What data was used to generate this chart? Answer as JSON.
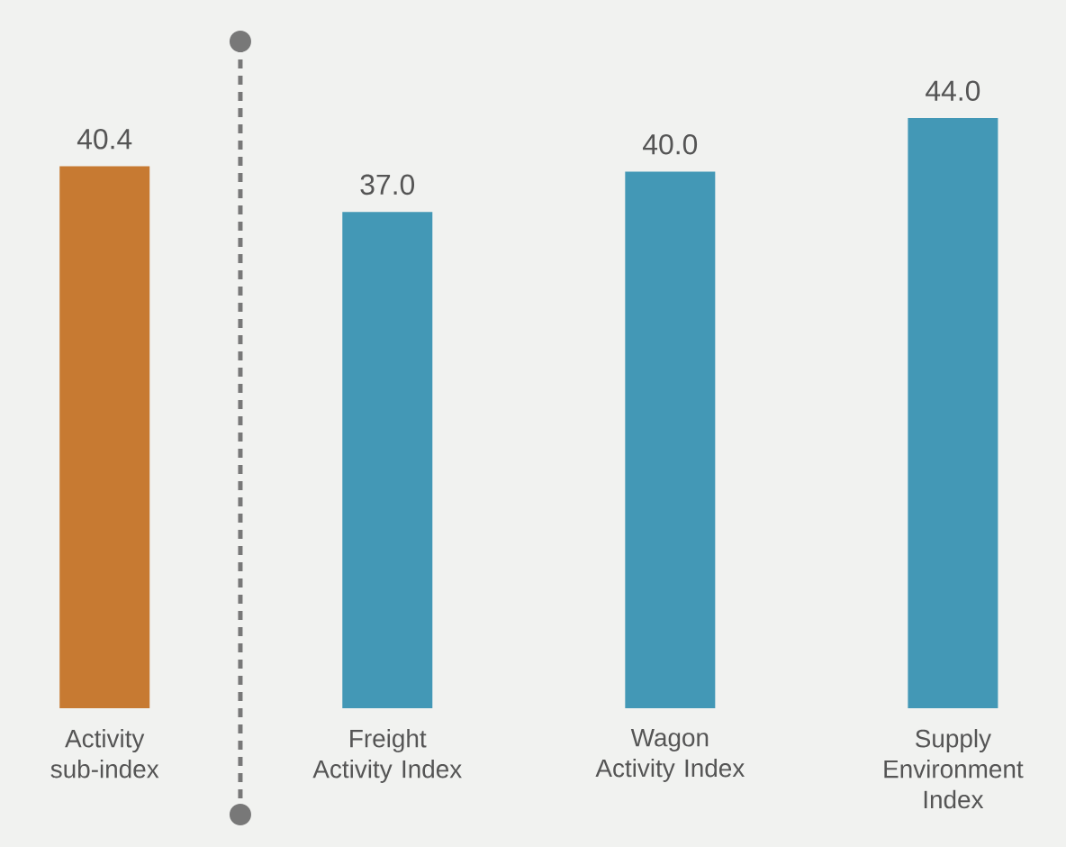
{
  "chart_data": {
    "type": "bar",
    "categories": [
      "Activity sub-index",
      "Freight Activity Index",
      "Wagon Activity Index",
      "Supply Environment Index"
    ],
    "values": [
      40.4,
      37,
      40,
      44
    ],
    "value_labels": [
      "40.4",
      "37.0",
      "40.0",
      "44.0"
    ],
    "colors": [
      "#c77a32",
      "#4398b6",
      "#4398b6",
      "#4398b6"
    ]
  }
}
